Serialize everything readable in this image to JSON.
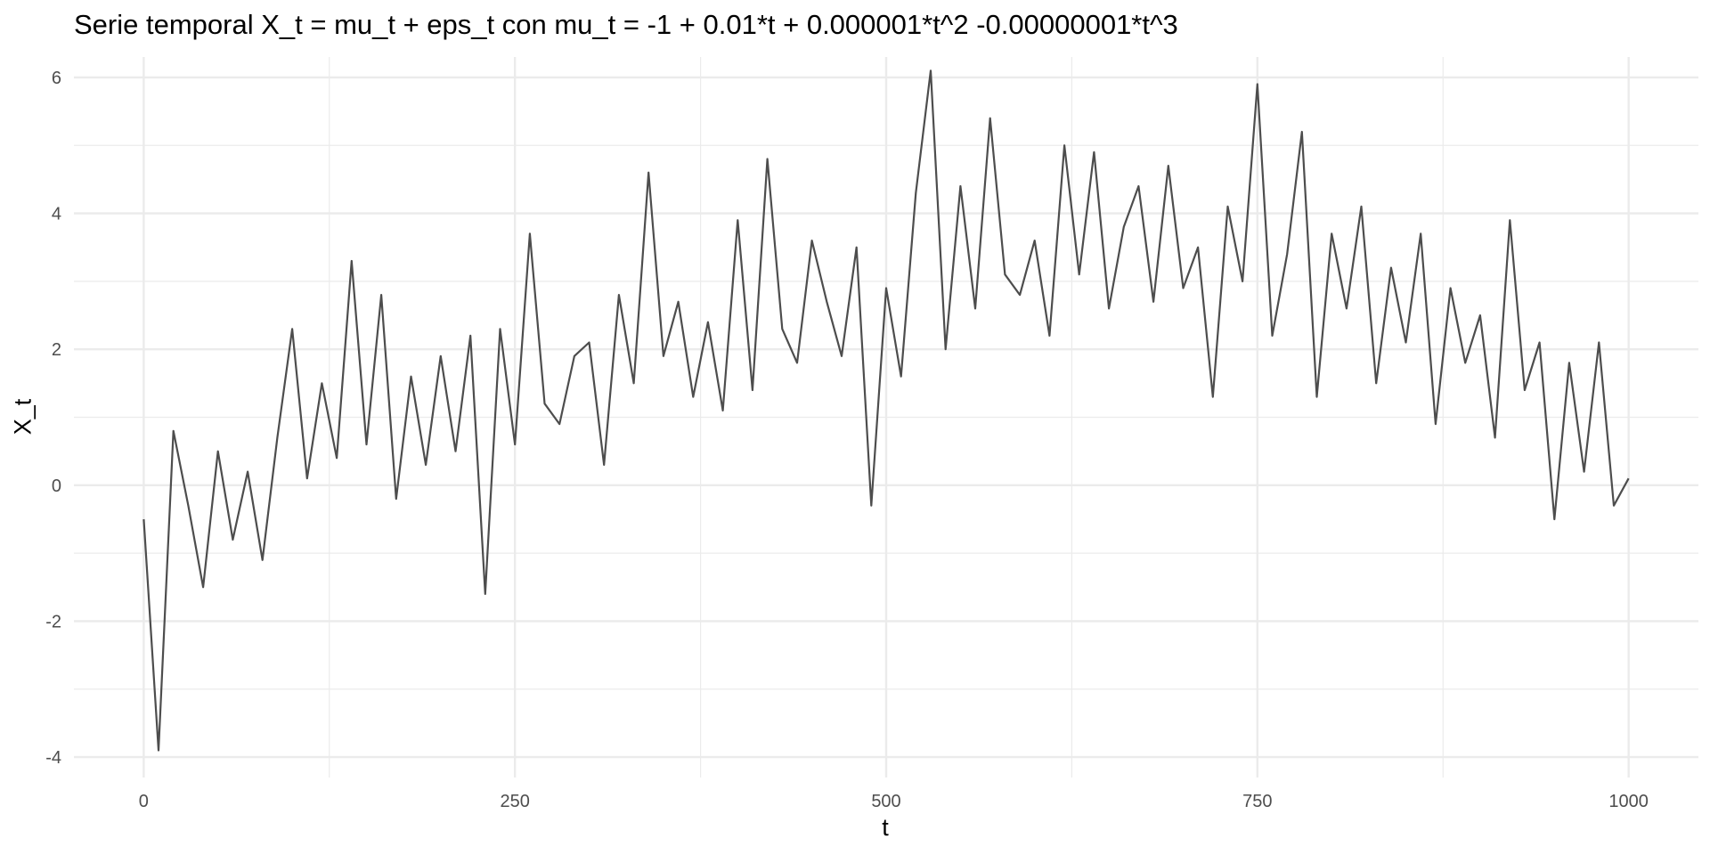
{
  "chart_data": {
    "type": "line",
    "title": "Serie temporal X_t = mu_t + eps_t con mu_t = -1 + 0.01*t + 0.000001*t^2 -0.00000001*t^3",
    "xlabel": "t",
    "ylabel": "X_t",
    "xlim": [
      -47,
      1047
    ],
    "ylim": [
      -4.3,
      6.3
    ],
    "x_ticks": [
      0,
      250,
      500,
      750,
      1000
    ],
    "x_tick_labels": [
      "0",
      "250",
      "500",
      "750",
      "1000"
    ],
    "x_minor_ticks": [
      125,
      375,
      625,
      875
    ],
    "y_ticks": [
      -4,
      -2,
      0,
      2,
      4,
      6
    ],
    "y_tick_labels": [
      "-4",
      "-2",
      "0",
      "2",
      "4",
      "6"
    ],
    "y_minor_ticks": [
      -3,
      -1,
      1,
      3,
      5
    ],
    "grid": true,
    "legend": "none",
    "line_color": "#4d4d4d",
    "grid_color": "#ebebeb",
    "series": [
      {
        "x": [
          0,
          10,
          20,
          30,
          40,
          50,
          60,
          70,
          80,
          90,
          100,
          110,
          120,
          130,
          140,
          150,
          160,
          170,
          180,
          190,
          200,
          210,
          220,
          230,
          240,
          250,
          260,
          270,
          280,
          290,
          300,
          310,
          320,
          330,
          340,
          350,
          360,
          370,
          380,
          390,
          400,
          410,
          420,
          430,
          440,
          450,
          460,
          470,
          480,
          490,
          500,
          510,
          520,
          530,
          540,
          550,
          560,
          570,
          580,
          590,
          600,
          610,
          620,
          630,
          640,
          650,
          660,
          670,
          680,
          690,
          700,
          710,
          720,
          730,
          740,
          750,
          760,
          770,
          780,
          790,
          800,
          810,
          820,
          830,
          840,
          850,
          860,
          870,
          880,
          890,
          900,
          910,
          920,
          930,
          940,
          950,
          960,
          970,
          980,
          990,
          1000
        ],
        "values": [
          -0.5,
          -3.9,
          0.8,
          -0.3,
          -1.5,
          0.5,
          -0.8,
          0.2,
          -1.1,
          0.7,
          2.3,
          0.1,
          1.5,
          0.4,
          3.3,
          0.6,
          2.8,
          -0.2,
          1.6,
          0.3,
          1.9,
          0.5,
          2.2,
          -1.6,
          2.3,
          0.6,
          3.7,
          1.2,
          0.9,
          1.9,
          2.1,
          0.3,
          2.8,
          1.5,
          4.6,
          1.9,
          2.7,
          1.3,
          2.4,
          1.1,
          3.9,
          1.4,
          4.8,
          2.3,
          1.8,
          3.6,
          2.7,
          1.9,
          3.5,
          -0.3,
          2.9,
          1.6,
          4.3,
          6.1,
          2.0,
          4.4,
          2.6,
          5.4,
          3.1,
          2.8,
          3.6,
          2.2,
          5.0,
          3.1,
          4.9,
          2.6,
          3.8,
          4.4,
          2.7,
          4.7,
          2.9,
          3.5,
          1.3,
          4.1,
          3.0,
          5.9,
          2.2,
          3.4,
          5.2,
          1.3,
          3.7,
          2.6,
          4.1,
          1.5,
          3.2,
          2.1,
          3.7,
          0.9,
          2.9,
          1.8,
          2.5,
          0.7,
          3.9,
          1.4,
          2.1,
          -0.5,
          1.8,
          0.2,
          2.1,
          -0.3,
          0.1
        ]
      }
    ]
  }
}
